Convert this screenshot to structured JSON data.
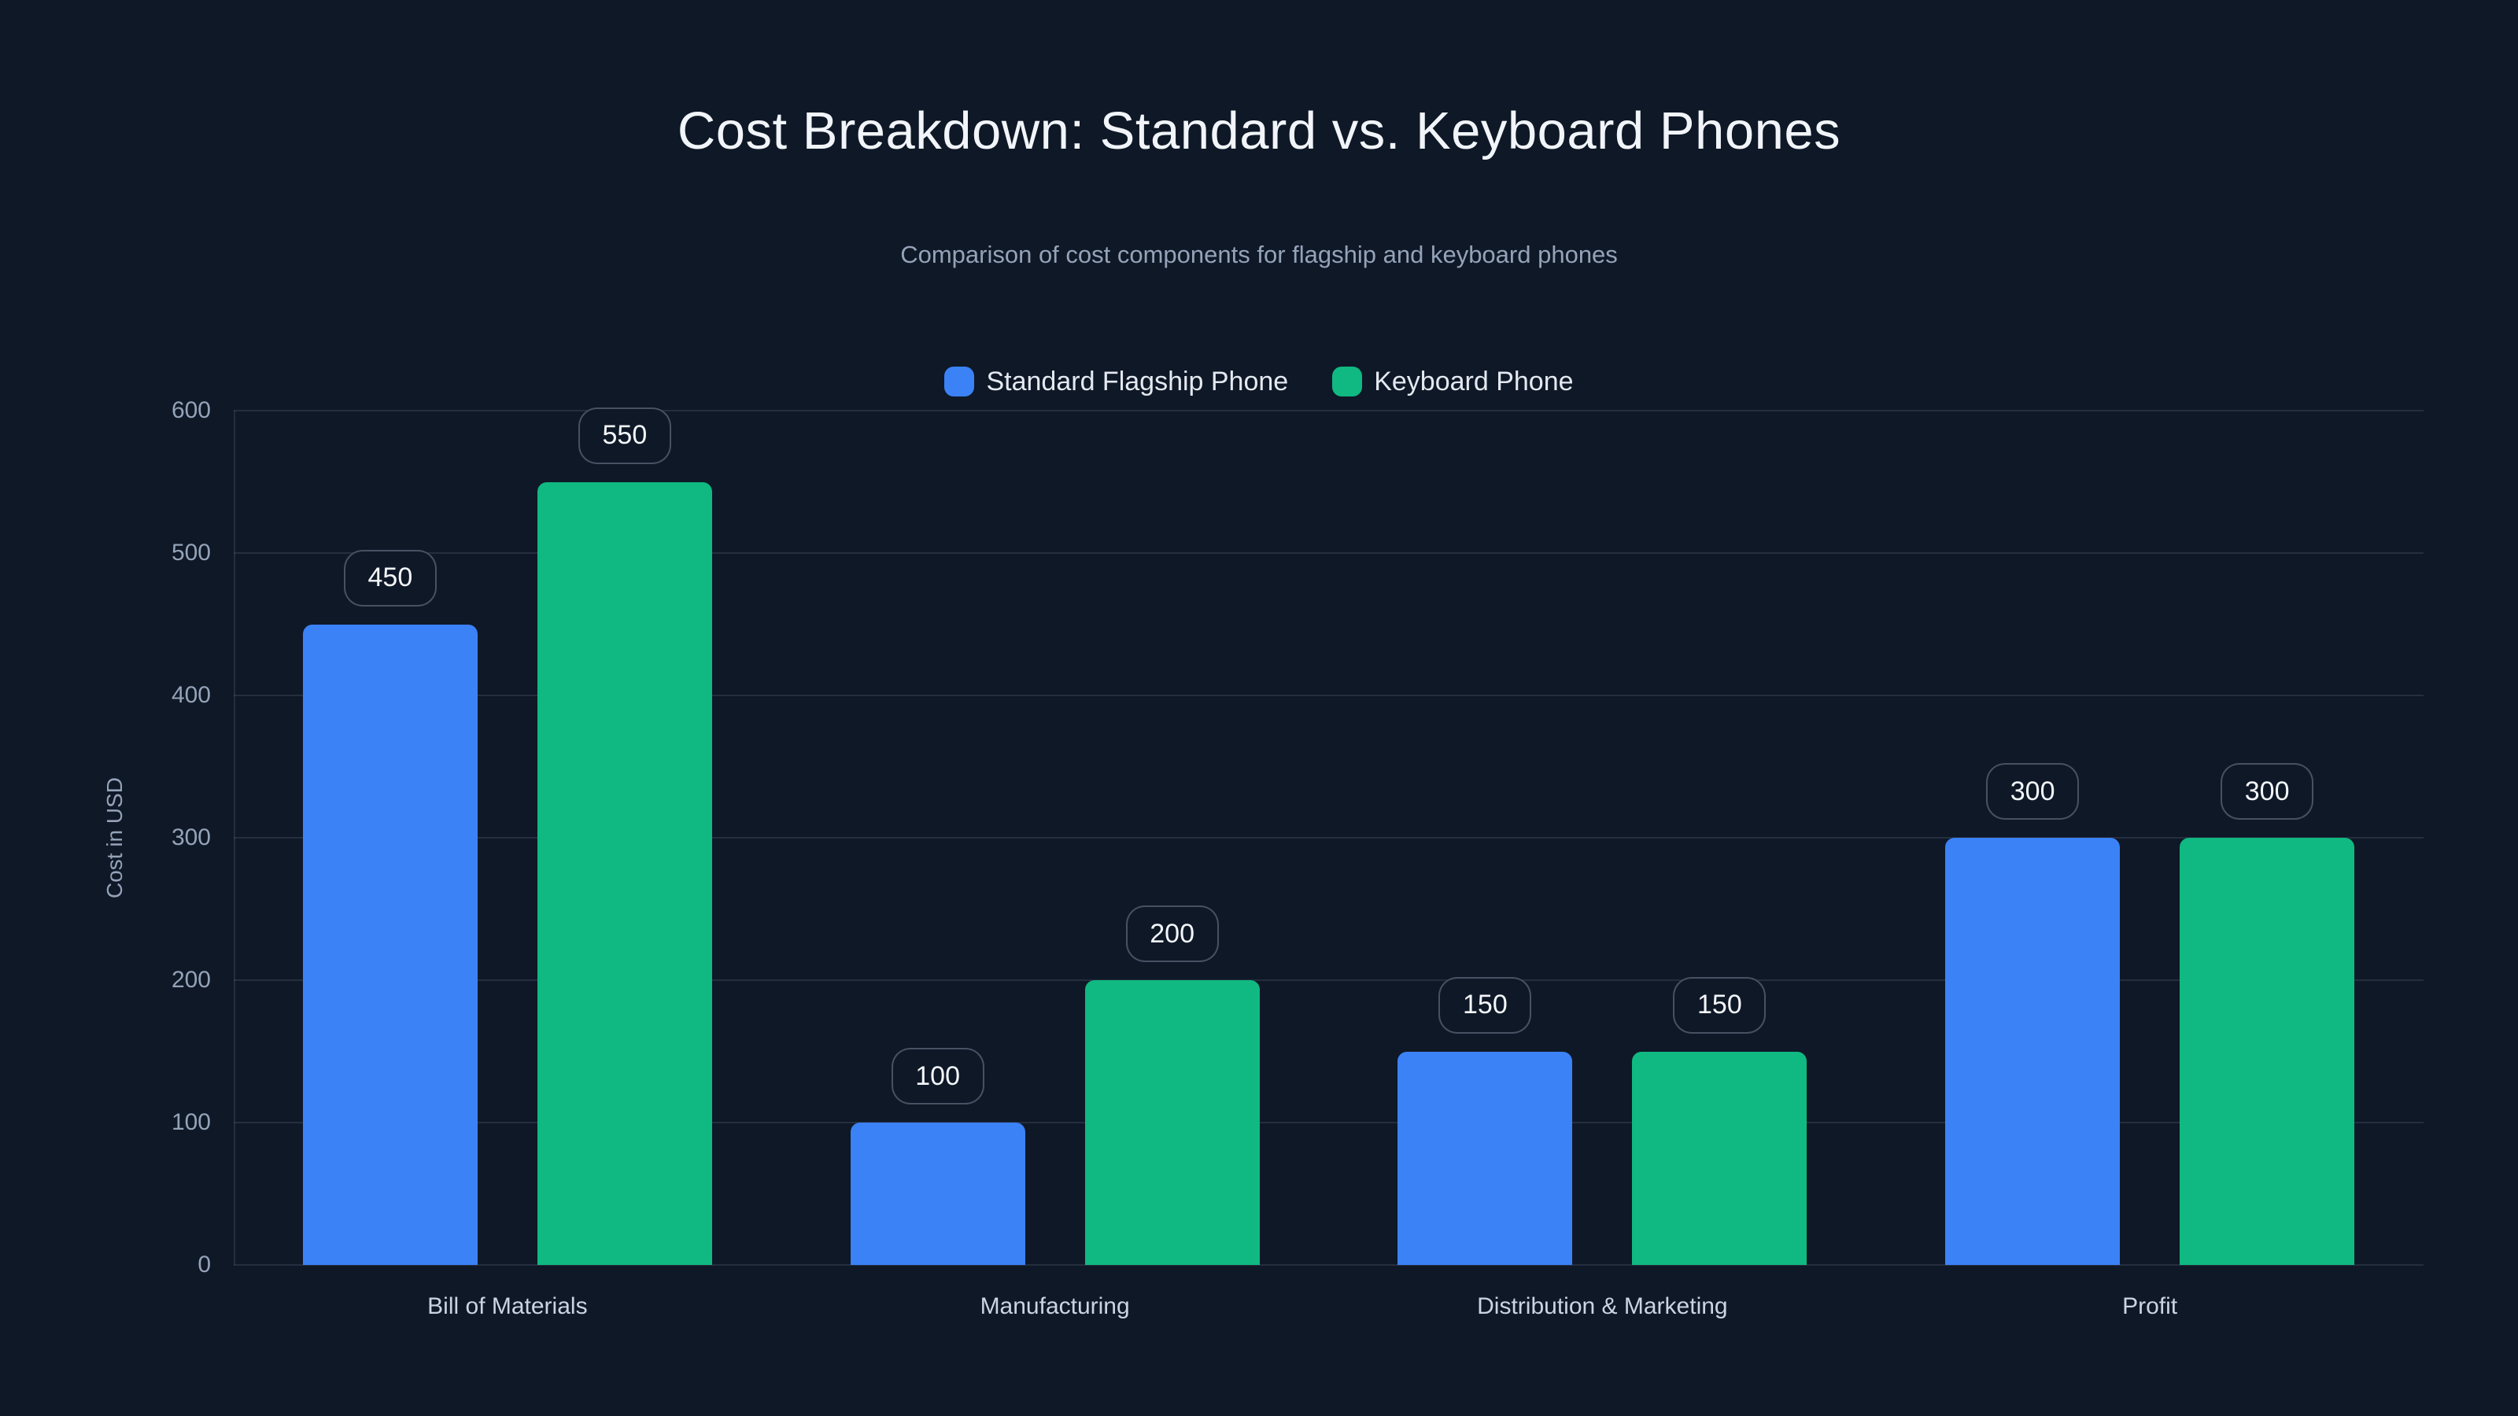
{
  "colors": {
    "background": "#0f1827",
    "grid_line": "rgba(148,163,184,0.16)",
    "badge_border": "rgba(148,163,184,0.42)",
    "badge_text": "#f3f6fa",
    "title_text": "#f1f5f9",
    "subtitle_text": "#94a3b8",
    "tick_text": "#94a3b8",
    "category_text": "#cbd5e1",
    "legend_text": "#e4e9f0"
  },
  "chart_data": {
    "type": "bar",
    "title": "Cost Breakdown: Standard vs. Keyboard Phones",
    "subtitle": "Comparison of cost components for flagship and keyboard phones",
    "xlabel": "",
    "ylabel": "Cost in USD",
    "ylim": [
      0,
      600
    ],
    "yticks": [
      0,
      100,
      200,
      300,
      400,
      500,
      600
    ],
    "grid": true,
    "legend_position": "top-center",
    "value_labels": true,
    "categories": [
      "Bill of Materials",
      "Manufacturing",
      "Distribution & Marketing",
      "Profit"
    ],
    "series": [
      {
        "name": "Standard Flagship Phone",
        "color": "#3b82f6",
        "values": [
          450,
          100,
          150,
          300
        ]
      },
      {
        "name": "Keyboard Phone",
        "color": "#10b981",
        "values": [
          550,
          200,
          150,
          300
        ]
      }
    ]
  }
}
